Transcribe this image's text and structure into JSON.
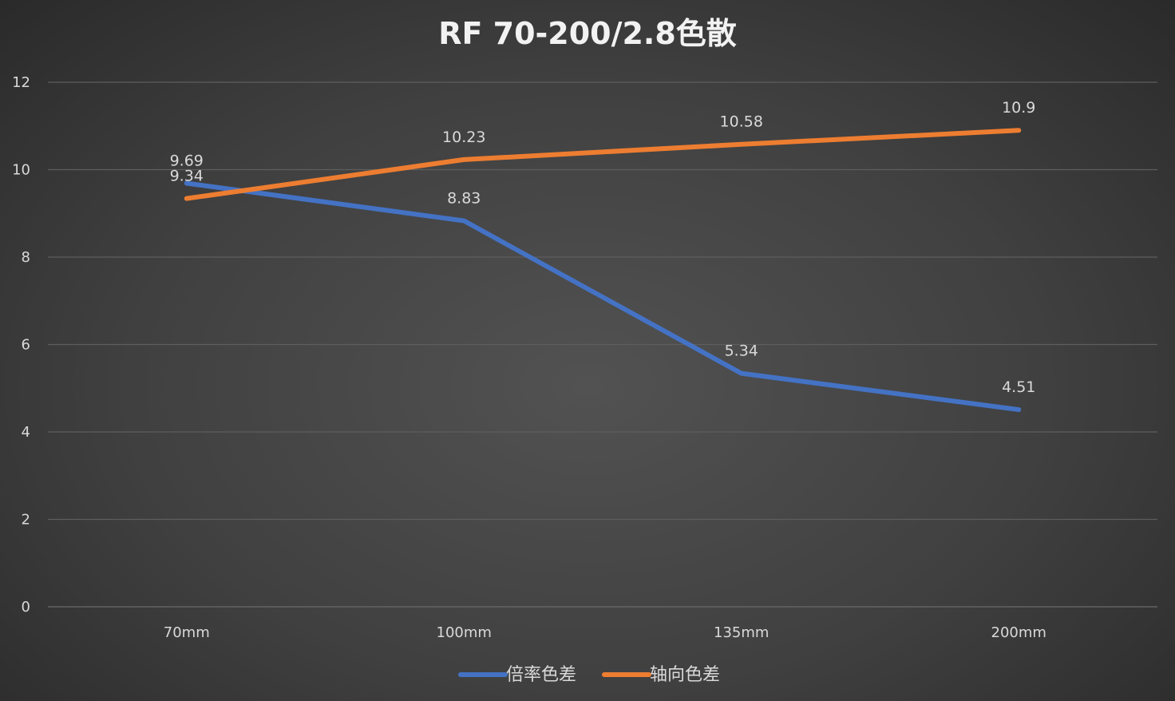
{
  "chart_data": {
    "type": "line",
    "title": "RF 70-200/2.8色散",
    "categories": [
      "70mm",
      "100mm",
      "135mm",
      "200mm"
    ],
    "series": [
      {
        "name": "倍率色差",
        "values": [
          9.69,
          8.83,
          5.34,
          4.51
        ],
        "color": "#4472C4"
      },
      {
        "name": "轴向色差",
        "values": [
          9.34,
          10.23,
          10.58,
          10.9
        ],
        "color": "#ED7D31"
      }
    ],
    "yticks": [
      "0",
      "2",
      "4",
      "6",
      "8",
      "10",
      "12"
    ],
    "ylim": [
      0,
      12
    ],
    "grid": true,
    "legend": "bottom",
    "data_labels": true
  }
}
